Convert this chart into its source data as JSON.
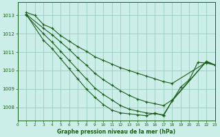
{
  "title": "Graphe pression niveau de la mer (hPa)",
  "background_color": "#cceee8",
  "grid_color": "#99ccbb",
  "line_color": "#1a5c1a",
  "xlim": [
    0,
    23
  ],
  "ylim": [
    1007.3,
    1013.7
  ],
  "yticks": [
    1008,
    1009,
    1010,
    1011,
    1012,
    1013
  ],
  "xticks": [
    0,
    1,
    2,
    3,
    4,
    5,
    6,
    7,
    8,
    9,
    10,
    11,
    12,
    13,
    14,
    15,
    16,
    17,
    18,
    19,
    20,
    21,
    22,
    23
  ],
  "lines": [
    {
      "x": [
        1,
        2,
        3,
        4,
        5,
        6,
        7,
        8,
        9,
        10,
        11,
        12,
        13,
        14,
        15,
        16,
        17,
        18,
        22,
        23
      ],
      "y": [
        1013.15,
        1013.0,
        1012.5,
        1012.3,
        1011.9,
        1011.6,
        1011.3,
        1011.05,
        1010.75,
        1010.55,
        1010.35,
        1010.15,
        1010.0,
        1009.85,
        1009.7,
        1009.55,
        1009.4,
        1009.3,
        1010.45,
        1010.3
      ]
    },
    {
      "x": [
        1,
        3,
        4,
        5,
        6,
        7,
        8,
        9,
        10,
        11,
        12,
        13,
        14,
        15,
        16,
        17,
        18,
        22,
        23
      ],
      "y": [
        1013.05,
        1012.3,
        1011.95,
        1011.55,
        1011.15,
        1010.7,
        1010.3,
        1009.85,
        1009.5,
        1009.2,
        1008.9,
        1008.65,
        1008.45,
        1008.3,
        1008.2,
        1008.1,
        1008.4,
        1010.5,
        1010.3
      ]
    },
    {
      "x": [
        1,
        3,
        4,
        5,
        6,
        7,
        8,
        9,
        10,
        11,
        12,
        13,
        14,
        15,
        16,
        17,
        18,
        22,
        23
      ],
      "y": [
        1013.0,
        1012.0,
        1011.55,
        1011.05,
        1010.55,
        1010.05,
        1009.55,
        1009.05,
        1008.7,
        1008.4,
        1008.1,
        1007.9,
        1007.8,
        1007.7,
        1007.65,
        1007.6,
        1008.35,
        1010.5,
        1010.3
      ]
    },
    {
      "x": [
        1,
        3,
        4,
        5,
        6,
        7,
        8,
        9,
        10,
        11,
        12,
        13,
        14,
        15,
        16,
        17,
        18,
        19,
        20,
        21,
        22,
        23
      ],
      "y": [
        1013.05,
        1011.65,
        1011.2,
        1010.65,
        1010.1,
        1009.55,
        1009.0,
        1008.55,
        1008.15,
        1007.85,
        1007.7,
        1007.65,
        1007.6,
        1007.55,
        1007.7,
        1007.55,
        1008.35,
        1009.1,
        1009.5,
        1010.45,
        1010.4,
        1010.3
      ]
    }
  ]
}
